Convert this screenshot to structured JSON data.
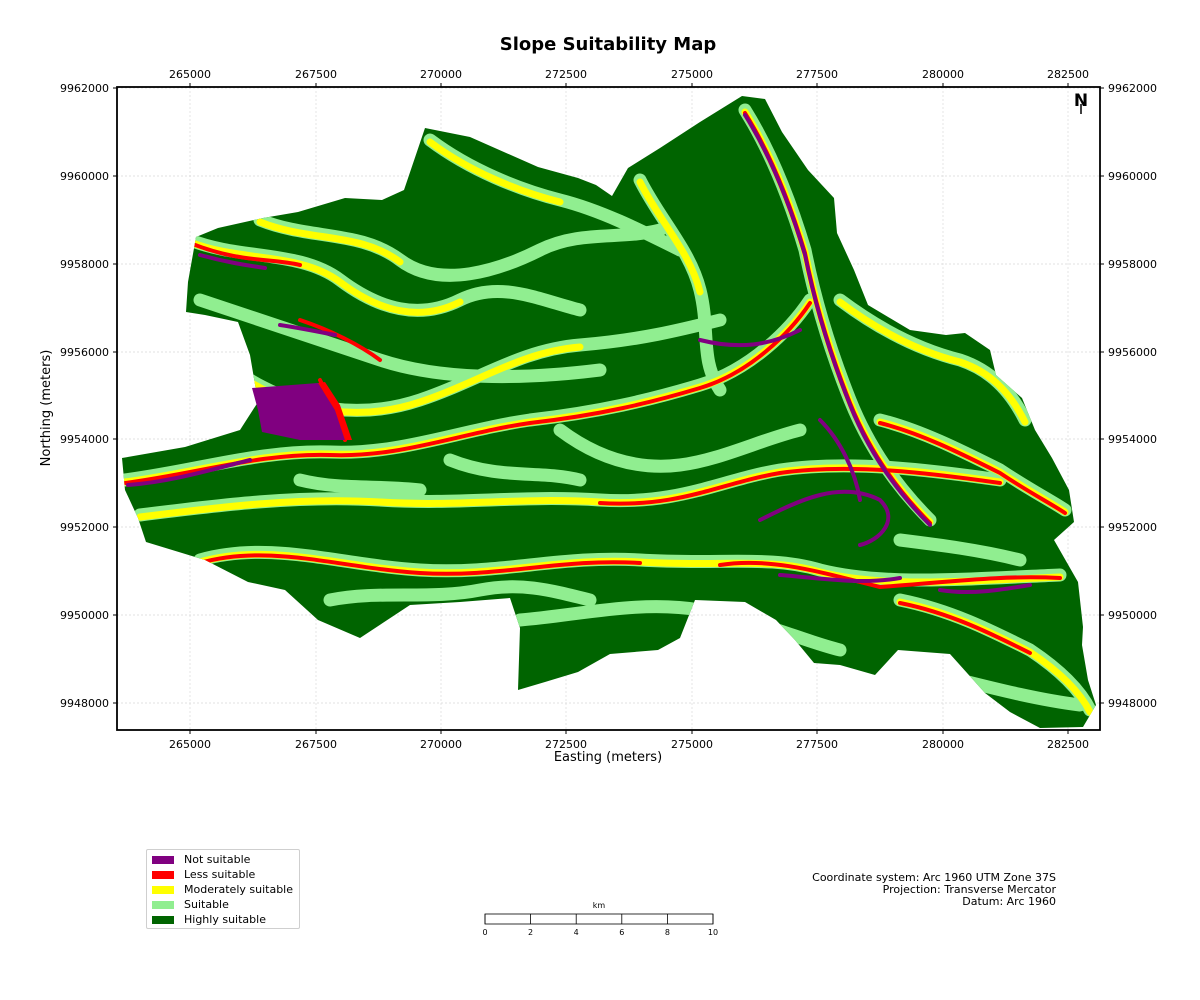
{
  "map": {
    "title": "Slope Suitability Map",
    "x_axis_label": "Easting (meters)",
    "y_axis_label": "Northing (meters)",
    "x_ticks": [
      "265000",
      "267500",
      "270000",
      "272500",
      "275000",
      "277500",
      "280000",
      "282500"
    ],
    "y_ticks": [
      "9962000",
      "9960000",
      "9958000",
      "9956000",
      "9954000",
      "9952000",
      "9950000",
      "9948000"
    ],
    "north_arrow_label": "N",
    "background_class_color": "#006400"
  },
  "legend": {
    "items": [
      {
        "label": "Not suitable",
        "color": "#800080"
      },
      {
        "label": "Less suitable",
        "color": "#ff0000"
      },
      {
        "label": "Moderately suitable",
        "color": "#ffff00"
      },
      {
        "label": "Suitable",
        "color": "#90ee90"
      },
      {
        "label": "Highly suitable",
        "color": "#006400"
      }
    ]
  },
  "scale_bar": {
    "unit": "km",
    "ticks": [
      "0",
      "2",
      "4",
      "6",
      "8",
      "10"
    ]
  },
  "info": {
    "coordinate_system": "Coordinate system: Arc 1960 UTM Zone 37S",
    "projection": "Projection: Transverse Mercator",
    "datum": "Datum: Arc 1960"
  }
}
